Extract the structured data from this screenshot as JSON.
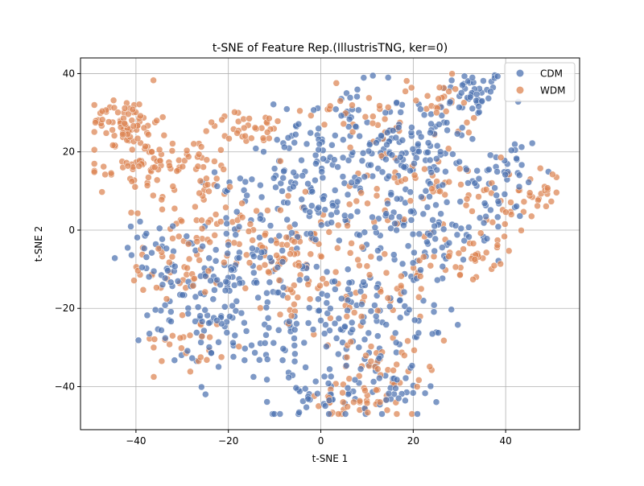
{
  "chart_data": {
    "type": "scatter",
    "title": "t-SNE of Feature Rep.(IllustrisTNG, ker=0)",
    "xlabel": "t-SNE 1",
    "ylabel": "t-SNE 2",
    "xlim": [
      -52,
      56
    ],
    "ylim": [
      -51,
      44
    ],
    "xticks": [
      -40,
      -20,
      0,
      20,
      40
    ],
    "yticks": [
      -40,
      -20,
      0,
      20,
      40
    ],
    "grid": true,
    "legend_position": "top-right",
    "series": [
      {
        "name": "CDM",
        "color": "#4c72b0",
        "clusters": [
          {
            "center": [
              33,
              35
            ],
            "spread": [
              3.5,
              3
            ],
            "count": 45
          },
          {
            "center": [
              22,
              22
            ],
            "spread": [
              6,
              6
            ],
            "count": 70
          },
          {
            "center": [
              40,
              14
            ],
            "spread": [
              4,
              6
            ],
            "count": 40
          },
          {
            "center": [
              30,
              2
            ],
            "spread": [
              6,
              7
            ],
            "count": 35
          },
          {
            "center": [
              5,
              25
            ],
            "spread": [
              7,
              6
            ],
            "count": 70
          },
          {
            "center": [
              -8,
              12
            ],
            "spread": [
              7,
              6
            ],
            "count": 55
          },
          {
            "center": [
              8,
              8
            ],
            "spread": [
              10,
              9
            ],
            "count": 100
          },
          {
            "center": [
              -15,
              -8
            ],
            "spread": [
              8,
              6
            ],
            "count": 70
          },
          {
            "center": [
              -25,
              -20
            ],
            "spread": [
              7,
              8
            ],
            "count": 80
          },
          {
            "center": [
              -5,
              -25
            ],
            "spread": [
              10,
              8
            ],
            "count": 100
          },
          {
            "center": [
              10,
              -25
            ],
            "spread": [
              8,
              8
            ],
            "count": 70
          },
          {
            "center": [
              0,
              -42
            ],
            "spread": [
              5,
              4
            ],
            "count": 35
          },
          {
            "center": [
              16,
              -42
            ],
            "spread": [
              4,
              3
            ],
            "count": 28
          },
          {
            "center": [
              -36,
              -5
            ],
            "spread": [
              4,
              5
            ],
            "count": 25
          },
          {
            "center": [
              18,
              0
            ],
            "spread": [
              8,
              10
            ],
            "count": 55
          }
        ]
      },
      {
        "name": "WDM",
        "color": "#dd8452",
        "clusters": [
          {
            "center": [
              -42,
              28
            ],
            "spread": [
              3.5,
              3
            ],
            "count": 70
          },
          {
            "center": [
              -40,
              16
            ],
            "spread": [
              4,
              4
            ],
            "count": 55
          },
          {
            "center": [
              -28,
              18
            ],
            "spread": [
              5,
              3
            ],
            "count": 35
          },
          {
            "center": [
              -15,
              26
            ],
            "spread": [
              6,
              2
            ],
            "count": 35
          },
          {
            "center": [
              -25,
              5
            ],
            "spread": [
              6,
              4
            ],
            "count": 35
          },
          {
            "center": [
              -30,
              -8
            ],
            "spread": [
              6,
              5
            ],
            "count": 45
          },
          {
            "center": [
              -28,
              -28
            ],
            "spread": [
              4,
              4
            ],
            "count": 25
          },
          {
            "center": [
              -8,
              -8
            ],
            "spread": [
              6,
              6
            ],
            "count": 45
          },
          {
            "center": [
              8,
              -15
            ],
            "spread": [
              8,
              7
            ],
            "count": 55
          },
          {
            "center": [
              15,
              -35
            ],
            "spread": [
              6,
              5
            ],
            "count": 45
          },
          {
            "center": [
              5,
              -44
            ],
            "spread": [
              5,
              2.5
            ],
            "count": 30
          },
          {
            "center": [
              47,
              10
            ],
            "spread": [
              3,
              2.5
            ],
            "count": 22
          },
          {
            "center": [
              38,
              6
            ],
            "spread": [
              5,
              5
            ],
            "count": 30
          },
          {
            "center": [
              30,
              -8
            ],
            "spread": [
              6,
              4
            ],
            "count": 35
          },
          {
            "center": [
              10,
              30
            ],
            "spread": [
              6,
              5
            ],
            "count": 35
          },
          {
            "center": [
              26,
              32
            ],
            "spread": [
              4,
              3
            ],
            "count": 22
          },
          {
            "center": [
              -5,
              0
            ],
            "spread": [
              10,
              8
            ],
            "count": 50
          },
          {
            "center": [
              20,
              10
            ],
            "spread": [
              8,
              6
            ],
            "count": 40
          }
        ]
      }
    ]
  }
}
